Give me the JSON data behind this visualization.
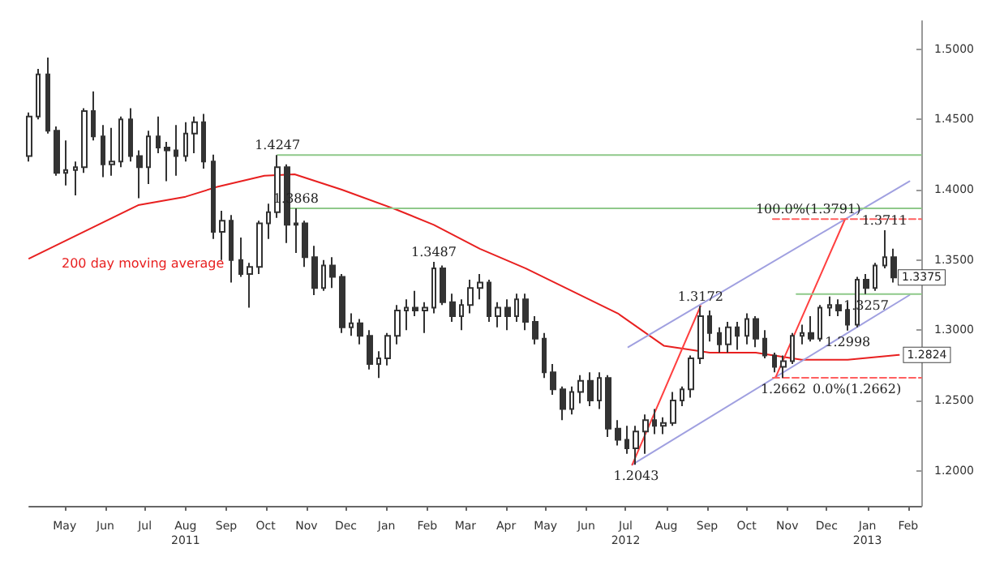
{
  "chart_data": {
    "type": "candlestick",
    "color": "#333333",
    "x": [
      "2011-04-18",
      "2011-04-25",
      "2011-05-02",
      "2011-05-09",
      "2011-05-16",
      "2011-05-23",
      "2011-05-30",
      "2011-06-06",
      "2011-06-13",
      "2011-06-20",
      "2011-06-27",
      "2011-07-04",
      "2011-07-11",
      "2011-07-18",
      "2011-07-25",
      "2011-08-01",
      "2011-08-08",
      "2011-08-15",
      "2011-08-22",
      "2011-08-29",
      "2011-09-05",
      "2011-09-12",
      "2011-09-19",
      "2011-09-26",
      "2011-10-03",
      "2011-10-10",
      "2011-10-17",
      "2011-10-24",
      "2011-10-31",
      "2011-11-07",
      "2011-11-14",
      "2011-11-21",
      "2011-11-28",
      "2011-12-05",
      "2011-12-12",
      "2011-12-19",
      "2011-12-26",
      "2012-01-02",
      "2012-01-09",
      "2012-01-16",
      "2012-01-23",
      "2012-01-30",
      "2012-02-06",
      "2012-02-13",
      "2012-02-20",
      "2012-02-27",
      "2012-03-05",
      "2012-03-12",
      "2012-03-19",
      "2012-03-26",
      "2012-04-02",
      "2012-04-09",
      "2012-04-16",
      "2012-04-23",
      "2012-04-30",
      "2012-05-07",
      "2012-05-14",
      "2012-05-21",
      "2012-05-28",
      "2012-06-04",
      "2012-06-11",
      "2012-06-18",
      "2012-06-25",
      "2012-07-02",
      "2012-07-09",
      "2012-07-16",
      "2012-07-23",
      "2012-07-30",
      "2012-08-06",
      "2012-08-13",
      "2012-08-20",
      "2012-08-27",
      "2012-09-03",
      "2012-09-10",
      "2012-09-17",
      "2012-09-24",
      "2012-10-01",
      "2012-10-08",
      "2012-10-15",
      "2012-10-22",
      "2012-10-29",
      "2012-11-05",
      "2012-11-12",
      "2012-11-19",
      "2012-11-26",
      "2012-12-03",
      "2012-12-10",
      "2012-12-17",
      "2012-12-24",
      "2012-12-31",
      "2013-01-07",
      "2013-01-14",
      "2013-01-21",
      "2013-01-28",
      "2013-02-04"
    ],
    "ohlc": [
      [
        1.424,
        1.455,
        1.42,
        1.452
      ],
      [
        1.452,
        1.486,
        1.45,
        1.482
      ],
      [
        1.482,
        1.494,
        1.44,
        1.442
      ],
      [
        1.442,
        1.445,
        1.41,
        1.412
      ],
      [
        1.412,
        1.435,
        1.403,
        1.414
      ],
      [
        1.414,
        1.42,
        1.396,
        1.416
      ],
      [
        1.416,
        1.458,
        1.412,
        1.456
      ],
      [
        1.456,
        1.47,
        1.435,
        1.438
      ],
      [
        1.438,
        1.446,
        1.409,
        1.418
      ],
      [
        1.418,
        1.444,
        1.41,
        1.42
      ],
      [
        1.42,
        1.452,
        1.416,
        1.45
      ],
      [
        1.45,
        1.458,
        1.42,
        1.424
      ],
      [
        1.424,
        1.428,
        1.394,
        1.416
      ],
      [
        1.416,
        1.442,
        1.404,
        1.438
      ],
      [
        1.438,
        1.452,
        1.426,
        1.43
      ],
      [
        1.43,
        1.434,
        1.406,
        1.428
      ],
      [
        1.428,
        1.446,
        1.41,
        1.424
      ],
      [
        1.424,
        1.448,
        1.42,
        1.44
      ],
      [
        1.44,
        1.452,
        1.426,
        1.448
      ],
      [
        1.448,
        1.454,
        1.415,
        1.42
      ],
      [
        1.42,
        1.425,
        1.365,
        1.37
      ],
      [
        1.37,
        1.385,
        1.35,
        1.378
      ],
      [
        1.378,
        1.382,
        1.334,
        1.35
      ],
      [
        1.35,
        1.366,
        1.338,
        1.34
      ],
      [
        1.34,
        1.348,
        1.316,
        1.345
      ],
      [
        1.345,
        1.378,
        1.34,
        1.376
      ],
      [
        1.376,
        1.39,
        1.365,
        1.384
      ],
      [
        1.384,
        1.4247,
        1.38,
        1.416
      ],
      [
        1.416,
        1.418,
        1.362,
        1.375
      ],
      [
        1.375,
        1.3868,
        1.355,
        1.376
      ],
      [
        1.376,
        1.378,
        1.345,
        1.352
      ],
      [
        1.352,
        1.36,
        1.325,
        1.33
      ],
      [
        1.33,
        1.35,
        1.328,
        1.346
      ],
      [
        1.346,
        1.352,
        1.33,
        1.338
      ],
      [
        1.338,
        1.34,
        1.298,
        1.302
      ],
      [
        1.302,
        1.312,
        1.296,
        1.305
      ],
      [
        1.305,
        1.308,
        1.29,
        1.296
      ],
      [
        1.296,
        1.3,
        1.272,
        1.276
      ],
      [
        1.276,
        1.285,
        1.266,
        1.28
      ],
      [
        1.28,
        1.298,
        1.275,
        1.296
      ],
      [
        1.296,
        1.318,
        1.29,
        1.314
      ],
      [
        1.314,
        1.322,
        1.3,
        1.316
      ],
      [
        1.316,
        1.328,
        1.31,
        1.314
      ],
      [
        1.314,
        1.32,
        1.298,
        1.316
      ],
      [
        1.316,
        1.3487,
        1.312,
        1.344
      ],
      [
        1.344,
        1.346,
        1.318,
        1.32
      ],
      [
        1.32,
        1.326,
        1.306,
        1.31
      ],
      [
        1.31,
        1.322,
        1.3,
        1.318
      ],
      [
        1.318,
        1.336,
        1.312,
        1.33
      ],
      [
        1.33,
        1.34,
        1.322,
        1.334
      ],
      [
        1.334,
        1.336,
        1.306,
        1.31
      ],
      [
        1.31,
        1.32,
        1.302,
        1.316
      ],
      [
        1.316,
        1.322,
        1.3,
        1.31
      ],
      [
        1.31,
        1.326,
        1.306,
        1.322
      ],
      [
        1.322,
        1.326,
        1.3,
        1.306
      ],
      [
        1.306,
        1.31,
        1.29,
        1.294
      ],
      [
        1.294,
        1.298,
        1.266,
        1.27
      ],
      [
        1.27,
        1.276,
        1.254,
        1.258
      ],
      [
        1.258,
        1.26,
        1.236,
        1.244
      ],
      [
        1.244,
        1.26,
        1.24,
        1.256
      ],
      [
        1.256,
        1.268,
        1.248,
        1.264
      ],
      [
        1.264,
        1.27,
        1.246,
        1.25
      ],
      [
        1.25,
        1.27,
        1.244,
        1.266
      ],
      [
        1.266,
        1.268,
        1.224,
        1.23
      ],
      [
        1.23,
        1.236,
        1.218,
        1.222
      ],
      [
        1.222,
        1.232,
        1.212,
        1.216
      ],
      [
        1.216,
        1.232,
        1.2043,
        1.228
      ],
      [
        1.228,
        1.24,
        1.212,
        1.236
      ],
      [
        1.236,
        1.244,
        1.226,
        1.232
      ],
      [
        1.232,
        1.238,
        1.226,
        1.234
      ],
      [
        1.234,
        1.256,
        1.232,
        1.25
      ],
      [
        1.25,
        1.26,
        1.246,
        1.258
      ],
      [
        1.258,
        1.282,
        1.252,
        1.28
      ],
      [
        1.28,
        1.3172,
        1.276,
        1.31
      ],
      [
        1.31,
        1.314,
        1.292,
        1.298
      ],
      [
        1.298,
        1.302,
        1.284,
        1.29
      ],
      [
        1.29,
        1.306,
        1.284,
        1.302
      ],
      [
        1.302,
        1.306,
        1.286,
        1.296
      ],
      [
        1.296,
        1.312,
        1.29,
        1.308
      ],
      [
        1.308,
        1.31,
        1.288,
        1.294
      ],
      [
        1.294,
        1.3,
        1.28,
        1.282
      ],
      [
        1.282,
        1.284,
        1.27,
        1.274
      ],
      [
        1.274,
        1.282,
        1.2662,
        1.278
      ],
      [
        1.278,
        1.298,
        1.276,
        1.296
      ],
      [
        1.296,
        1.304,
        1.29,
        1.298
      ],
      [
        1.298,
        1.31,
        1.292,
        1.294
      ],
      [
        1.294,
        1.318,
        1.292,
        1.316
      ],
      [
        1.316,
        1.324,
        1.31,
        1.318
      ],
      [
        1.318,
        1.322,
        1.31,
        1.314
      ],
      [
        1.314,
        1.32,
        1.2998,
        1.304
      ],
      [
        1.304,
        1.338,
        1.302,
        1.336
      ],
      [
        1.336,
        1.34,
        1.3257,
        1.33
      ],
      [
        1.33,
        1.348,
        1.328,
        1.346
      ],
      [
        1.346,
        1.3711,
        1.344,
        1.352
      ],
      [
        1.352,
        1.358,
        1.334,
        1.3375
      ]
    ],
    "series": [
      {
        "type": "line",
        "name": "200 day moving average",
        "color": "#e82020",
        "x": [
          "2011-04-18",
          "2011-05-23",
          "2011-07-10",
          "2011-08-15",
          "2011-09-08",
          "2011-10-14",
          "2011-11-06",
          "2011-12-12",
          "2012-01-22",
          "2012-02-20",
          "2012-03-26",
          "2012-04-30",
          "2012-06-04",
          "2012-07-09",
          "2012-08-13",
          "2012-09-17",
          "2012-10-22",
          "2012-11-26",
          "2012-12-31",
          "2013-02-08"
        ],
        "values": [
          1.351,
          1.367,
          1.389,
          1.395,
          1.402,
          1.41,
          1.411,
          1.4,
          1.386,
          1.375,
          1.358,
          1.344,
          1.328,
          1.312,
          1.289,
          1.284,
          1.284,
          1.279,
          1.279,
          1.2824
        ]
      },
      {
        "type": "line",
        "color": "#a0a0e0",
        "x": [
          "2012-07-17",
          "2013-02-16"
        ],
        "values": [
          1.288,
          1.406
        ]
      },
      {
        "type": "line",
        "color": "#a0a0e0",
        "x": [
          "2012-07-20",
          "2013-02-16"
        ],
        "values": [
          1.2043,
          1.325
        ]
      },
      {
        "type": "line",
        "color": "#ff4040",
        "x": [
          "2012-07-20",
          "2012-09-10"
        ],
        "values": [
          1.2043,
          1.3172
        ]
      },
      {
        "type": "line",
        "color": "#ff4040",
        "x": [
          "2012-11-06",
          "2012-12-29"
        ],
        "values": [
          1.2662,
          1.3791
        ]
      },
      {
        "type": "line",
        "color": "#ff6060",
        "line_style": "dashed",
        "x": [
          "2012-11-04",
          "2013-02-25"
        ],
        "values": [
          1.3791,
          1.3791
        ]
      },
      {
        "type": "line",
        "color": "#ff6060",
        "line_style": "dashed",
        "x": [
          "2012-11-04",
          "2013-02-25"
        ],
        "values": [
          1.2662,
          1.2662
        ]
      },
      {
        "type": "line",
        "color": "#8fc98a",
        "x": [
          "2011-10-24",
          "2013-02-25"
        ],
        "values": [
          1.4247,
          1.4247
        ]
      },
      {
        "type": "line",
        "color": "#8fc98a",
        "x": [
          "2011-11-01",
          "2013-02-25"
        ],
        "values": [
          1.3868,
          1.3868
        ]
      },
      {
        "type": "line",
        "color": "#8fc98a",
        "x": [
          "2012-11-22",
          "2013-02-25"
        ],
        "values": [
          1.3257,
          1.3257
        ]
      }
    ],
    "annotations": [
      {
        "text": "1.4247",
        "x": "2011-10-24",
        "y": 1.4247
      },
      {
        "text": "1.3868",
        "x": "2011-11-07",
        "y": 1.3868
      },
      {
        "text": "1.3487",
        "x": "2012-02-20",
        "y": 1.3487
      },
      {
        "text": "1.3172",
        "x": "2012-09-10",
        "y": 1.3172
      },
      {
        "text": "1.2043",
        "x": "2012-07-23",
        "y": 1.2043
      },
      {
        "text": "1.2662",
        "x": "2012-11-12",
        "y": 1.2662
      },
      {
        "text": "1.2998",
        "x": "2012-12-31",
        "y": 1.2998
      },
      {
        "text": "1.3257",
        "x": "2013-01-14",
        "y": 1.3257
      },
      {
        "text": "1.3711",
        "x": "2013-01-28",
        "y": 1.3711
      },
      {
        "text": "100.0%(1.3791)",
        "x": "2012-12-01",
        "y": 1.3791
      },
      {
        "text": "0.0%(1.2662)",
        "x": "2013-01-07",
        "y": 1.2662
      },
      {
        "text": "1.3375",
        "x": "2013-02-04",
        "y": 1.3375
      },
      {
        "text": "1.2824",
        "x": "2013-02-08",
        "y": 1.2824
      }
    ],
    "xlim": [
      "2011-04-18",
      "2013-02-25"
    ],
    "xticks": [
      {
        "value": "2011-05-15",
        "label": "May"
      },
      {
        "value": "2011-06-15",
        "label": "Jun"
      },
      {
        "value": "2011-07-15",
        "label": "Jul"
      },
      {
        "value": "2011-08-15",
        "label": "Aug\n2011"
      },
      {
        "value": "2011-09-15",
        "label": "Sep"
      },
      {
        "value": "2011-10-15",
        "label": "Oct"
      },
      {
        "value": "2011-11-15",
        "label": "Nov"
      },
      {
        "value": "2011-12-15",
        "label": "Dec"
      },
      {
        "value": "2012-01-15",
        "label": "Jan"
      },
      {
        "value": "2012-02-15",
        "label": "Feb"
      },
      {
        "value": "2012-03-15",
        "label": "Mar"
      },
      {
        "value": "2012-04-15",
        "label": "Apr"
      },
      {
        "value": "2012-05-15",
        "label": "May"
      },
      {
        "value": "2012-06-15",
        "label": "Jun"
      },
      {
        "value": "2012-07-15",
        "label": "Jul\n2012"
      },
      {
        "value": "2012-08-15",
        "label": "Aug"
      },
      {
        "value": "2012-09-15",
        "label": "Sep"
      },
      {
        "value": "2012-10-15",
        "label": "Oct"
      },
      {
        "value": "2012-11-15",
        "label": "Nov"
      },
      {
        "value": "2012-12-15",
        "label": "Dec"
      },
      {
        "value": "2013-01-15",
        "label": "Jan\n2013"
      },
      {
        "value": "2013-02-15",
        "label": "Feb"
      }
    ],
    "ylim": [
      1.175,
      1.52
    ],
    "yticks": [
      {
        "value": 1.2,
        "label": "1.2000"
      },
      {
        "value": 1.25,
        "label": "1.2500"
      },
      {
        "value": 1.3,
        "label": "1.3000"
      },
      {
        "value": 1.35,
        "label": "1.3500"
      },
      {
        "value": 1.4,
        "label": "1.4000"
      },
      {
        "value": 1.45,
        "label": "1.4500"
      },
      {
        "value": 1.5,
        "label": "1.5000"
      }
    ]
  }
}
